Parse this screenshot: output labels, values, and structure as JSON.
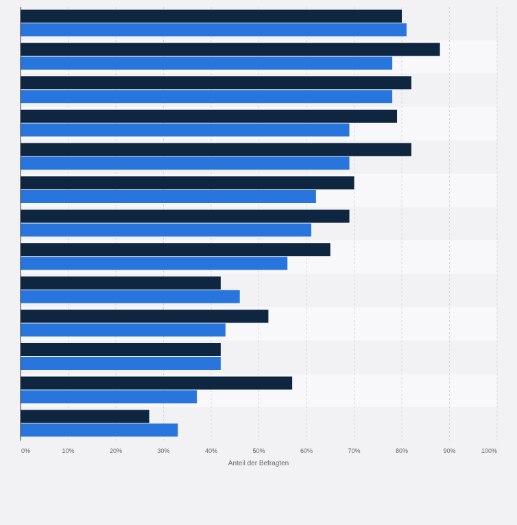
{
  "chart_data": {
    "type": "bar",
    "orientation": "horizontal",
    "categories": [
      "",
      "",
      "",
      "",
      "",
      "",
      "",
      "",
      "",
      "",
      "",
      "",
      ""
    ],
    "series": [
      {
        "color": "#0f2640",
        "values": [
          80,
          88,
          82,
          79,
          82,
          70,
          69,
          65,
          42,
          52,
          42,
          57,
          27
        ]
      },
      {
        "color": "#2876dd",
        "values": [
          81,
          78,
          78,
          69,
          69,
          62,
          61,
          56,
          46,
          43,
          42,
          37,
          33
        ]
      }
    ],
    "xlabel": "Anteil der Befragten",
    "xlim": [
      0,
      100
    ],
    "x_ticks": [
      "0%",
      "10%",
      "20%",
      "30%",
      "40%",
      "50%",
      "60%",
      "70%",
      "80%",
      "90%",
      "100%"
    ],
    "grid": true,
    "legend": "none"
  }
}
